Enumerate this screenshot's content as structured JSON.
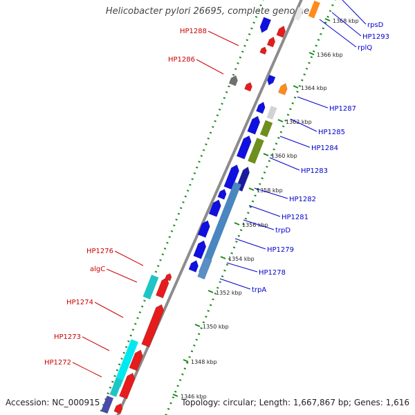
{
  "title": "Helicobacter pylori 26695, complete genome",
  "footer": {
    "accession": "Accession: NC_000915",
    "summary": "Topology: circular; Length: 1,667,867 bp; Genes: 1,616"
  },
  "colors": {
    "backbone": "#8c8c8c",
    "dots": "#1a8a1a",
    "label_forward": "#cc0000",
    "label_reverse": "#0000cc"
  },
  "scale_labels": [
    "1346 kbp",
    "1348 kbp",
    "1350 kbp",
    "1352 kbp",
    "1354 kbp",
    "1356 kbp",
    "1358 kbp",
    "1360 kbp",
    "1362 kbp",
    "1364 kbp",
    "1366 kbp",
    "1368 kbp"
  ],
  "labels_forward": [
    "HP1288",
    "HP1286",
    "HP1276",
    "algC",
    "HP1274",
    "HP1273",
    "HP1272"
  ],
  "labels_reverse": [
    "rpsD",
    "HP1293",
    "rplQ",
    "HP1287",
    "HP1285",
    "HP1284",
    "HP1283",
    "HP1282",
    "HP1281",
    "trpD",
    "HP1279",
    "HP1278",
    "trpA"
  ]
}
